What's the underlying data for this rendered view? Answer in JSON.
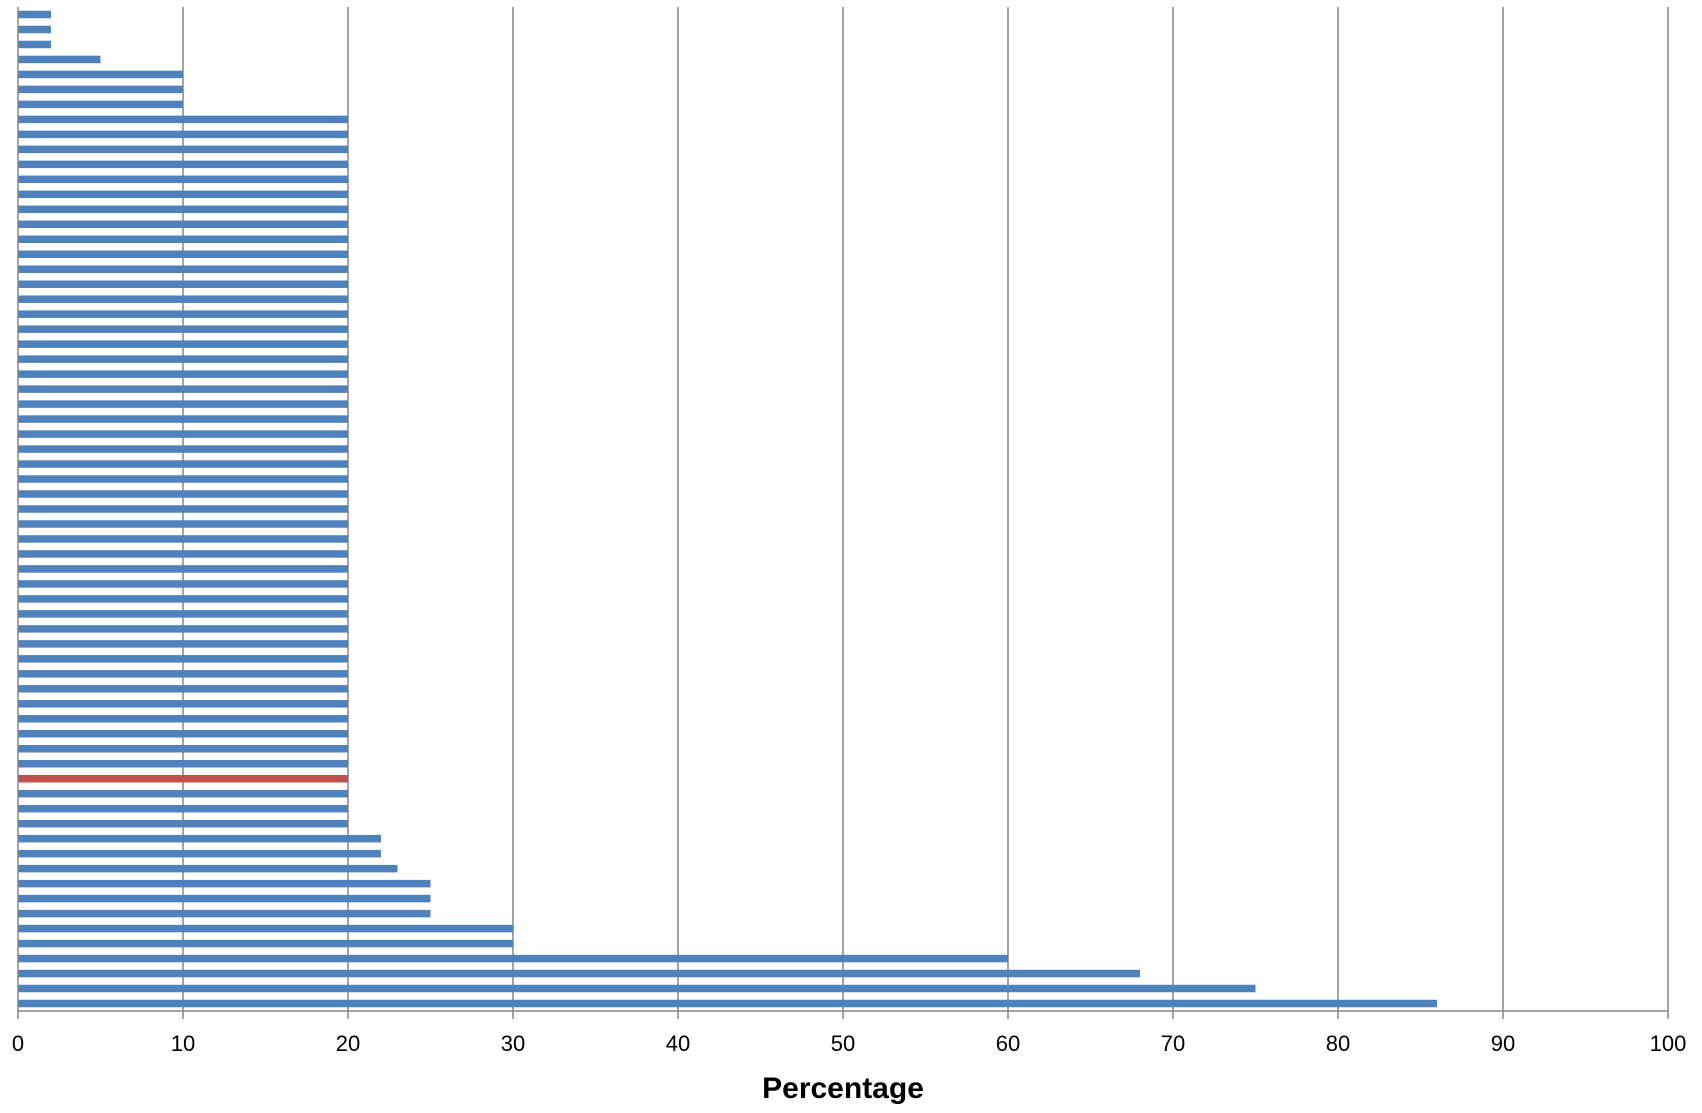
{
  "chart_data": {
    "type": "bar",
    "orientation": "horizontal",
    "xlabel": "Percentage",
    "xlim": [
      0,
      100
    ],
    "xticks": [
      "0",
      "10",
      "20",
      "30",
      "40",
      "50",
      "60",
      "70",
      "80",
      "90",
      "100"
    ],
    "grid": "vertical",
    "values_top_to_bottom": [
      2,
      2,
      2,
      5,
      10,
      10,
      10,
      20,
      20,
      20,
      20,
      20,
      20,
      20,
      20,
      20,
      20,
      20,
      20,
      20,
      20,
      20,
      20,
      20,
      20,
      20,
      20,
      20,
      20,
      20,
      20,
      20,
      20,
      20,
      20,
      20,
      20,
      20,
      20,
      20,
      20,
      20,
      20,
      20,
      20,
      20,
      20,
      20,
      20,
      20,
      20,
      20,
      20,
      20,
      20,
      22,
      22,
      23,
      25,
      25,
      25,
      30,
      30,
      60,
      68,
      75,
      86
    ],
    "highlight_index": 51,
    "colors": {
      "bar": "#4f81bd",
      "highlight": "#c0504d",
      "grid": "#868686",
      "axis": "#868686"
    }
  }
}
